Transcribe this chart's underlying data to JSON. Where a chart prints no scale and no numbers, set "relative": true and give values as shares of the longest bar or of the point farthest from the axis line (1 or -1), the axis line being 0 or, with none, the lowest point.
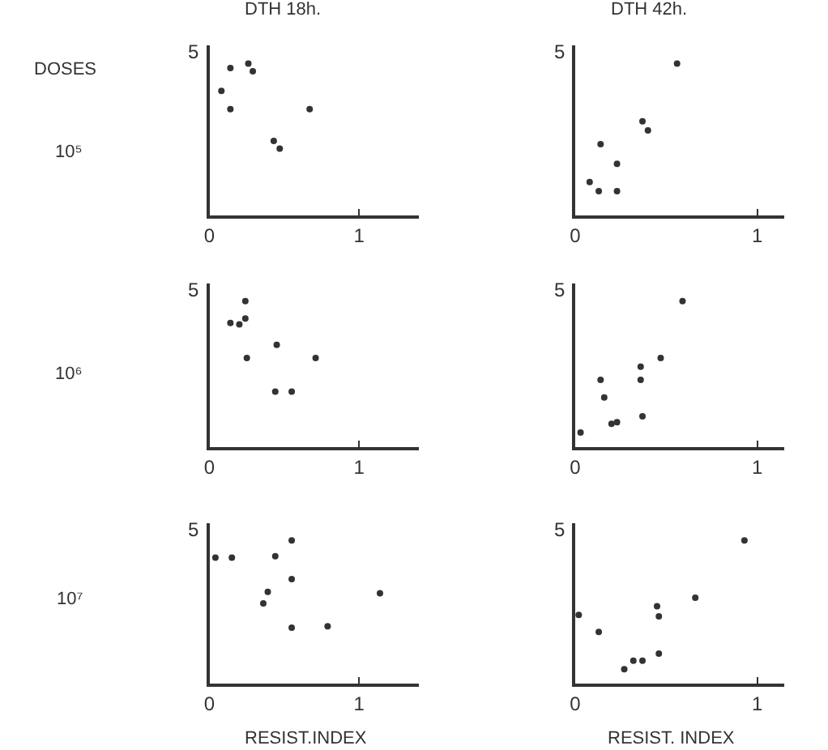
{
  "chart_data": [
    {
      "type": "scatter",
      "relative": true,
      "title": "DTH 18h.",
      "ylabel": "10⁵",
      "annotations": [
        "DOSES",
        "5"
      ],
      "x": [
        0.08,
        0.14,
        0.14,
        0.26,
        0.29,
        0.43,
        0.47,
        0.67
      ],
      "series": [
        {
          "color": "#333333",
          "values": [
            0.82,
            0.97,
            0.7,
            1,
            0.95,
            0.49,
            0.44,
            0.7
          ]
        }
      ],
      "xlim": [
        0,
        1.4
      ],
      "xticks": [
        0,
        1
      ],
      "marker": "circle"
    },
    {
      "type": "scatter",
      "relative": true,
      "title": "DTH 42h.",
      "annotations": [
        "5"
      ],
      "x": [
        0.56,
        0.37,
        0.4,
        0.14,
        0.23,
        0.08,
        0.13,
        0.23
      ],
      "series": [
        {
          "color": "#333333",
          "values": [
            1,
            0.62,
            0.56,
            0.47,
            0.34,
            0.22,
            0.16,
            0.16
          ]
        }
      ],
      "xlim": [
        0,
        1.15
      ],
      "xticks": [
        0,
        1
      ],
      "marker": "circle"
    },
    {
      "type": "scatter",
      "relative": true,
      "ylabel": "10⁶",
      "annotations": [
        "5"
      ],
      "x": [
        0.24,
        0.14,
        0.2,
        0.24,
        0.25,
        0.45,
        0.71,
        0.44,
        0.55
      ],
      "series": [
        {
          "color": "#333333",
          "values": [
            1,
            0.85,
            0.84,
            0.88,
            0.61,
            0.7,
            0.61,
            0.38,
            0.38
          ]
        }
      ],
      "xlim": [
        0,
        1.4
      ],
      "xticks": [
        0,
        1
      ],
      "marker": "circle"
    },
    {
      "type": "scatter",
      "relative": true,
      "annotations": [
        "5"
      ],
      "x": [
        0.59,
        0.47,
        0.36,
        0.36,
        0.14,
        0.16,
        0.2,
        0.23,
        0.37,
        0.03
      ],
      "series": [
        {
          "color": "#333333",
          "values": [
            1,
            0.61,
            0.55,
            0.46,
            0.46,
            0.34,
            0.16,
            0.17,
            0.21,
            0.1
          ]
        }
      ],
      "xlim": [
        0,
        1.15
      ],
      "xticks": [
        0,
        1
      ],
      "marker": "circle"
    },
    {
      "type": "scatter",
      "relative": true,
      "ylabel": "10⁷",
      "xlabel": "RESIST.INDEX",
      "annotations": [
        "5"
      ],
      "x": [
        0.04,
        0.15,
        0.44,
        0.55,
        0.55,
        0.39,
        0.36,
        0.55,
        0.79,
        1.14
      ],
      "series": [
        {
          "color": "#333333",
          "values": [
            0.88,
            0.88,
            0.89,
            1,
            0.73,
            0.64,
            0.56,
            0.39,
            0.4,
            0.63
          ]
        }
      ],
      "xlim": [
        0,
        1.4
      ],
      "xticks": [
        0,
        1
      ],
      "marker": "circle"
    },
    {
      "type": "scatter",
      "relative": true,
      "xlabel": "RESIST. INDEX",
      "annotations": [
        "5"
      ],
      "x": [
        0.93,
        0.66,
        0.45,
        0.46,
        0.02,
        0.13,
        0.27,
        0.32,
        0.37,
        0.46
      ],
      "series": [
        {
          "color": "#333333",
          "values": [
            1,
            0.6,
            0.54,
            0.47,
            0.48,
            0.36,
            0.1,
            0.16,
            0.16,
            0.21
          ]
        }
      ],
      "xlim": [
        0,
        1.15
      ],
      "xticks": [
        0,
        1
      ],
      "marker": "circle"
    }
  ]
}
